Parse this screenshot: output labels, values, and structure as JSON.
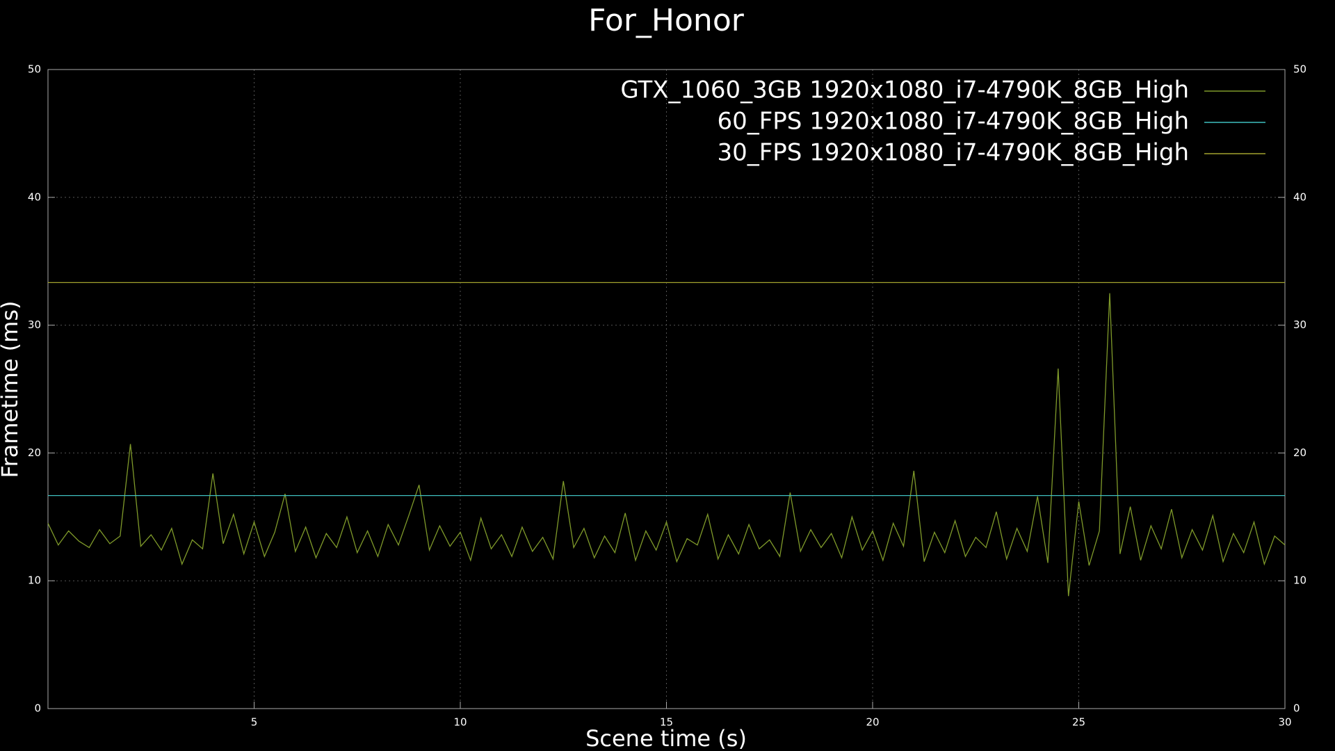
{
  "chart_data": {
    "type": "line",
    "title": "For_Honor",
    "x_label": "Scene time (s)",
    "y_label": "Frametime (ms)",
    "xlim": [
      0,
      30
    ],
    "xticks": [
      5,
      10,
      15,
      20,
      25,
      30
    ],
    "ylim": [
      0,
      50
    ],
    "yticks": [
      0,
      10,
      20,
      30,
      40,
      50
    ],
    "grid": true,
    "legend": "top-right",
    "mirror_y_axis": true,
    "series": [
      {
        "name": "GTX_1060_3GB 1920x1080_i7-4790K_8GB_High",
        "color": "#7f9a2a",
        "x": [
          0,
          0.25,
          0.5,
          0.75,
          1,
          1.25,
          1.5,
          1.75,
          2,
          2.25,
          2.5,
          2.75,
          3,
          3.25,
          3.5,
          3.75,
          4,
          4.25,
          4.5,
          4.75,
          5,
          5.25,
          5.5,
          5.75,
          6,
          6.25,
          6.5,
          6.75,
          7,
          7.25,
          7.5,
          7.75,
          8,
          8.25,
          8.5,
          8.75,
          9,
          9.25,
          9.5,
          9.75,
          10,
          10.25,
          10.5,
          10.75,
          11,
          11.25,
          11.5,
          11.75,
          12,
          12.25,
          12.5,
          12.75,
          13,
          13.25,
          13.5,
          13.75,
          14,
          14.25,
          14.5,
          14.75,
          15,
          15.25,
          15.5,
          15.75,
          16,
          16.25,
          16.5,
          16.75,
          17,
          17.25,
          17.5,
          17.75,
          18,
          18.25,
          18.5,
          18.75,
          19,
          19.25,
          19.5,
          19.75,
          20,
          20.25,
          20.5,
          20.75,
          21,
          21.25,
          21.5,
          21.75,
          22,
          22.25,
          22.5,
          22.75,
          23,
          23.25,
          23.5,
          23.75,
          24,
          24.25,
          24.5,
          24.75,
          25,
          25.25,
          25.5,
          25.75,
          26,
          26.25,
          26.5,
          26.75,
          27,
          27.25,
          27.5,
          27.75,
          28,
          28.25,
          28.5,
          28.75,
          29,
          29.25,
          29.5,
          29.75,
          30
        ],
        "values": [
          14.5,
          12.8,
          13.9,
          13.1,
          12.6,
          14.0,
          12.9,
          13.5,
          20.7,
          12.7,
          13.6,
          12.4,
          14.1,
          11.3,
          13.2,
          12.5,
          18.4,
          12.9,
          15.2,
          12.1,
          14.6,
          11.9,
          13.8,
          16.8,
          12.3,
          14.2,
          11.8,
          13.7,
          12.6,
          15.0,
          12.2,
          13.9,
          11.9,
          14.4,
          12.8,
          15.1,
          17.5,
          12.4,
          14.3,
          12.7,
          13.8,
          11.6,
          14.9,
          12.5,
          13.6,
          11.9,
          14.2,
          12.3,
          13.4,
          11.7,
          17.8,
          12.6,
          14.1,
          11.8,
          13.5,
          12.2,
          15.3,
          11.6,
          13.9,
          12.4,
          14.6,
          11.5,
          13.3,
          12.8,
          15.2,
          11.7,
          13.6,
          12.1,
          14.4,
          12.5,
          13.2,
          11.9,
          16.9,
          12.3,
          14.0,
          12.6,
          13.7,
          11.8,
          15.0,
          12.4,
          13.9,
          11.6,
          14.5,
          12.7,
          18.6,
          11.5,
          13.8,
          12.2,
          14.7,
          11.9,
          13.4,
          12.6,
          15.4,
          11.7,
          14.1,
          12.3,
          16.6,
          11.4,
          26.6,
          8.8,
          16.2,
          11.2,
          13.9,
          32.5,
          12.1,
          15.8,
          11.6,
          14.3,
          12.5,
          15.6,
          11.8,
          14.0,
          12.4,
          15.1,
          11.5,
          13.7,
          12.2,
          14.6,
          11.3,
          13.5,
          12.8
        ]
      },
      {
        "name": "60_FPS 1920x1080_i7-4790K_8GB_High",
        "color": "#3fbfbf",
        "x": [
          0,
          30
        ],
        "values": [
          16.67,
          16.67
        ]
      },
      {
        "name": "30_FPS 1920x1080_i7-4790K_8GB_High",
        "color": "#a3a32e",
        "x": [
          0,
          30
        ],
        "values": [
          33.33,
          33.33
        ]
      }
    ]
  }
}
